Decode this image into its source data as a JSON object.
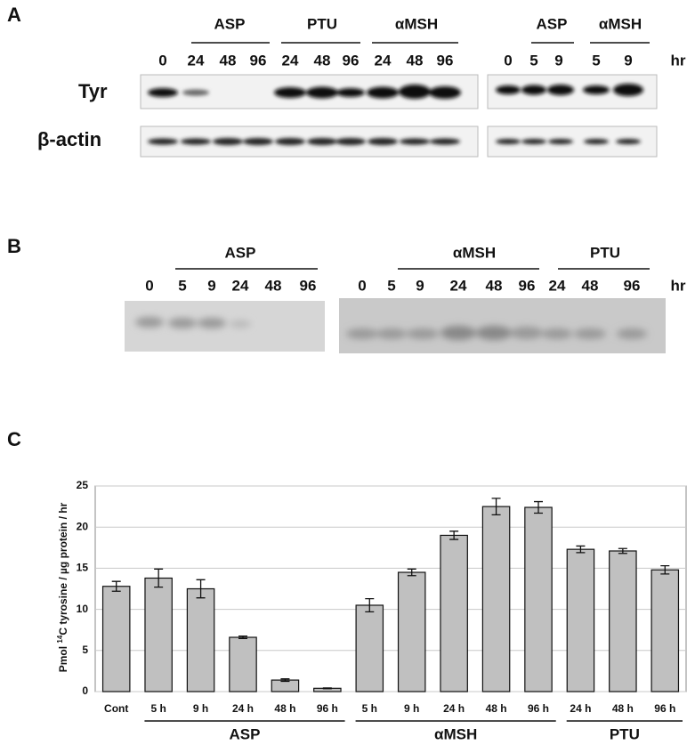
{
  "panel_a": {
    "label": "A",
    "groups_left": [
      "ASP",
      "PTU",
      "αMSH"
    ],
    "groups_right": [
      "ASP",
      "αMSH"
    ],
    "lanes_left": [
      "0",
      "24",
      "48",
      "96",
      "24",
      "48",
      "96",
      "24",
      "48",
      "96"
    ],
    "lanes_right": [
      "0",
      "5",
      "9",
      "5",
      "9"
    ],
    "unit": "hr",
    "rows": [
      "Tyr",
      "β-actin"
    ]
  },
  "panel_b": {
    "label": "B",
    "groups": [
      "ASP",
      "αMSH",
      "PTU"
    ],
    "lanes": [
      "0",
      "5",
      "9",
      "24",
      "48",
      "96",
      "0",
      "5",
      "9",
      "24",
      "48",
      "96",
      "24",
      "48",
      "96"
    ],
    "unit": "hr"
  },
  "panel_c": {
    "label": "C"
  },
  "chart_data": {
    "type": "bar",
    "y_label": [
      "Pmol ",
      "14",
      "C tyrosine / µg protein / hr"
    ],
    "categories": [
      "Cont",
      "5 h",
      "9 h",
      "24 h",
      "48 h",
      "96 h",
      "5 h",
      "9 h",
      "24 h",
      "48 h",
      "96 h",
      "24 h",
      "48 h",
      "96 h"
    ],
    "values": [
      12.8,
      13.8,
      12.5,
      6.6,
      1.4,
      0.4,
      10.5,
      14.5,
      19.0,
      22.5,
      22.4,
      17.3,
      17.1,
      14.8
    ],
    "errors": [
      0.6,
      1.1,
      1.1,
      0.15,
      0.15,
      0.05,
      0.8,
      0.4,
      0.5,
      1.0,
      0.7,
      0.4,
      0.3,
      0.5
    ],
    "groups": [
      "ASP",
      "αMSH",
      "PTU"
    ],
    "color": "#c0c0c0",
    "ylim": [
      0,
      25
    ],
    "yticks": [
      0,
      5,
      10,
      15,
      20,
      25
    ],
    "grid": true
  }
}
